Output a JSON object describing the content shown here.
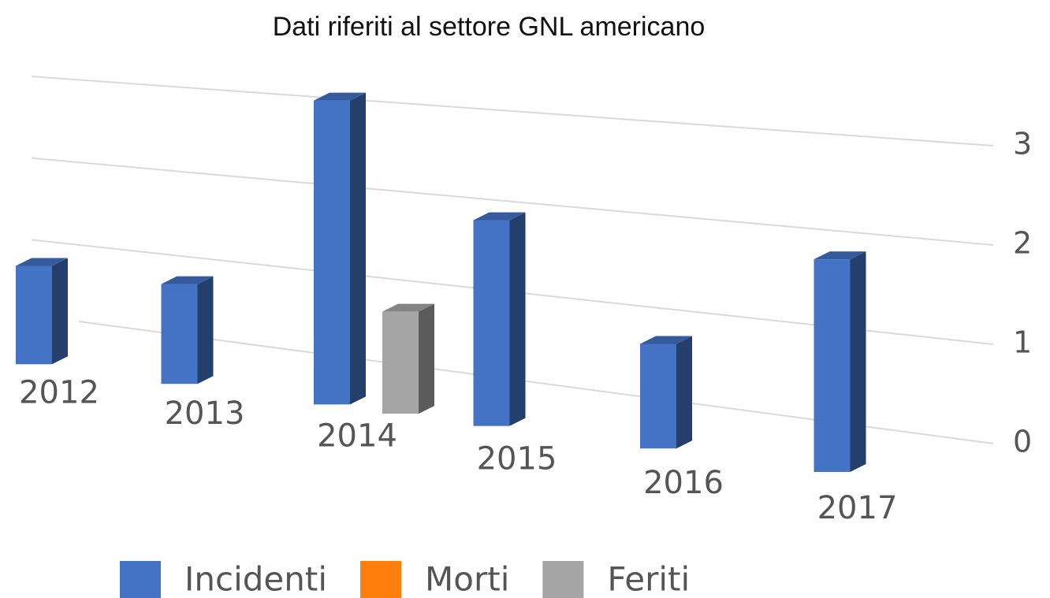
{
  "chart_data": {
    "type": "bar3d",
    "title": "Dati riferiti al settore GNL americano",
    "categories": [
      "2012",
      "2013",
      "2014",
      "2015",
      "2016",
      "2017"
    ],
    "series": [
      {
        "name": "Incidenti",
        "color": "#4472c4",
        "values": [
          1,
          1,
          3,
          2,
          1,
          2
        ]
      },
      {
        "name": "Morti",
        "color": "#ff7f0e",
        "values": [
          0,
          0,
          0,
          0,
          0,
          0
        ]
      },
      {
        "name": "Feriti",
        "color": "#a5a5a5",
        "values": [
          0,
          0,
          1,
          0,
          0,
          0
        ]
      }
    ],
    "ylim": [
      0,
      3
    ],
    "yticks": [
      0,
      1,
      2,
      3
    ],
    "grid": true,
    "legend": "bottom"
  }
}
